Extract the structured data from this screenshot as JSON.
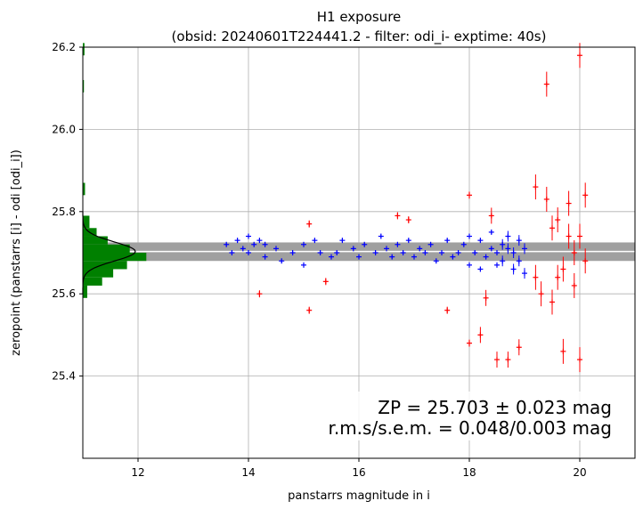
{
  "chart_data": {
    "type": "scatter",
    "title_line1": "H1 exposure",
    "title_line2": "(obsid: 20240601T224441.2 - filter: odi_i- exptime: 40s)",
    "xlabel": "panstarrs magnitude in i",
    "ylabel": "zeropoint (panstarrs [i] - odi [odi_i])",
    "xlim": [
      11.0,
      21.0
    ],
    "ylim": [
      25.2,
      26.2
    ],
    "x_ticks": [
      {
        "value": 12,
        "label": "12"
      },
      {
        "value": 14,
        "label": "14"
      },
      {
        "value": 16,
        "label": "16"
      },
      {
        "value": 18,
        "label": "18"
      },
      {
        "value": 20,
        "label": "20"
      }
    ],
    "y_ticks": [
      {
        "value": 25.4,
        "label": "25.4"
      },
      {
        "value": 25.6,
        "label": "25.6"
      },
      {
        "value": 25.8,
        "label": "25.8"
      },
      {
        "value": 26.0,
        "label": "26.0"
      },
      {
        "value": 26.2,
        "label": "26.2"
      }
    ],
    "grid": true,
    "zeropoint": 25.703,
    "zeropoint_band": [
      25.68,
      25.725
    ],
    "colors": {
      "used": "#0000ff",
      "rejected": "#ff0000",
      "histogram": "#008000",
      "band": "#a0a0a0",
      "gauss": "#000000"
    },
    "annotation_line1": "ZP = 25.703 ± 0.023 mag",
    "annotation_line2": "r.m.s/s.e.m. = 0.048/0.003 mag",
    "series": [
      {
        "role": "used",
        "points": [
          [
            13.6,
            25.72
          ],
          [
            13.7,
            25.7
          ],
          [
            13.8,
            25.73
          ],
          [
            13.9,
            25.71
          ],
          [
            14.0,
            25.74
          ],
          [
            14.0,
            25.7
          ],
          [
            14.1,
            25.72
          ],
          [
            14.2,
            25.73
          ],
          [
            14.3,
            25.69
          ],
          [
            14.3,
            25.72
          ],
          [
            14.5,
            25.71
          ],
          [
            14.6,
            25.68
          ],
          [
            14.8,
            25.7
          ],
          [
            15.0,
            25.67
          ],
          [
            15.0,
            25.72
          ],
          [
            15.2,
            25.73
          ],
          [
            15.3,
            25.7
          ],
          [
            15.5,
            25.69
          ],
          [
            15.6,
            25.7
          ],
          [
            15.7,
            25.73
          ],
          [
            15.9,
            25.71
          ],
          [
            16.0,
            25.69
          ],
          [
            16.1,
            25.72
          ],
          [
            16.3,
            25.7
          ],
          [
            16.4,
            25.74
          ],
          [
            16.5,
            25.71
          ],
          [
            16.6,
            25.69
          ],
          [
            16.7,
            25.72
          ],
          [
            16.8,
            25.7
          ],
          [
            16.9,
            25.73
          ],
          [
            17.0,
            25.69
          ],
          [
            17.1,
            25.71
          ],
          [
            17.2,
            25.7
          ],
          [
            17.3,
            25.72
          ],
          [
            17.4,
            25.68
          ],
          [
            17.5,
            25.7
          ],
          [
            17.6,
            25.73
          ],
          [
            17.7,
            25.69
          ],
          [
            17.8,
            25.7
          ],
          [
            17.9,
            25.72
          ],
          [
            18.0,
            25.67
          ],
          [
            18.0,
            25.74
          ],
          [
            18.1,
            25.7
          ],
          [
            18.2,
            25.66
          ],
          [
            18.2,
            25.73
          ],
          [
            18.3,
            25.69
          ],
          [
            18.4,
            25.71
          ],
          [
            18.4,
            25.75
          ],
          [
            18.5,
            25.67
          ],
          [
            18.5,
            25.7
          ],
          [
            18.6,
            25.72
          ],
          [
            18.6,
            25.68
          ],
          [
            18.7,
            25.71
          ],
          [
            18.7,
            25.74
          ],
          [
            18.8,
            25.66
          ],
          [
            18.8,
            25.7
          ],
          [
            18.9,
            25.73
          ],
          [
            18.9,
            25.68
          ],
          [
            19.0,
            25.71
          ],
          [
            19.0,
            25.65
          ]
        ]
      },
      {
        "role": "rejected",
        "points": [
          [
            14.2,
            25.6
          ],
          [
            15.1,
            25.56
          ],
          [
            15.1,
            25.77
          ],
          [
            15.4,
            25.63
          ],
          [
            16.7,
            25.79
          ],
          [
            16.9,
            25.78
          ],
          [
            17.6,
            25.56
          ],
          [
            18.0,
            25.48
          ],
          [
            18.0,
            25.84
          ],
          [
            18.2,
            25.5
          ],
          [
            18.3,
            25.59
          ],
          [
            18.4,
            25.79
          ],
          [
            18.5,
            25.44
          ],
          [
            18.7,
            25.44
          ],
          [
            18.9,
            25.47
          ],
          [
            19.2,
            25.86
          ],
          [
            19.4,
            25.83
          ],
          [
            19.5,
            25.76
          ],
          [
            19.6,
            25.64
          ],
          [
            19.7,
            25.46
          ],
          [
            19.8,
            25.82
          ],
          [
            19.9,
            25.7
          ],
          [
            20.0,
            26.18
          ],
          [
            20.0,
            25.44
          ],
          [
            20.1,
            25.84
          ],
          [
            19.4,
            26.11
          ],
          [
            19.3,
            25.6
          ],
          [
            19.6,
            25.78
          ],
          [
            19.7,
            25.66
          ],
          [
            19.9,
            25.62
          ],
          [
            20.0,
            25.74
          ],
          [
            20.1,
            25.68
          ],
          [
            19.2,
            25.64
          ],
          [
            19.5,
            25.58
          ],
          [
            19.8,
            25.74
          ]
        ]
      }
    ]
  }
}
